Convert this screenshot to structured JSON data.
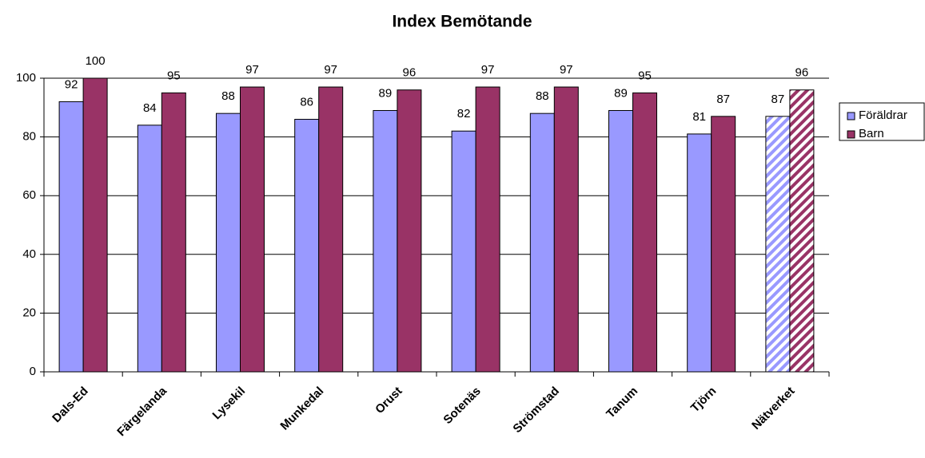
{
  "chart_data": {
    "type": "bar",
    "title": "Index Bemötande",
    "categories": [
      "Dals-Ed",
      "Färgelanda",
      "Lysekil",
      "Munkedal",
      "Orust",
      "Sotenäs",
      "Strömstad",
      "Tanum",
      "Tjörn",
      "Nätverket"
    ],
    "series": [
      {
        "name": "Föräldrar",
        "color": "#9999ff",
        "values": [
          92,
          84,
          88,
          86,
          89,
          82,
          88,
          89,
          81,
          87
        ]
      },
      {
        "name": "Barn",
        "color": "#993366",
        "values": [
          100,
          95,
          97,
          97,
          96,
          97,
          97,
          95,
          87,
          96
        ]
      }
    ],
    "ylim": [
      0,
      100
    ],
    "yticks": [
      0,
      20,
      40,
      60,
      80,
      100
    ],
    "grid": true,
    "legend": "right",
    "hatched_category": "Nätverket"
  }
}
